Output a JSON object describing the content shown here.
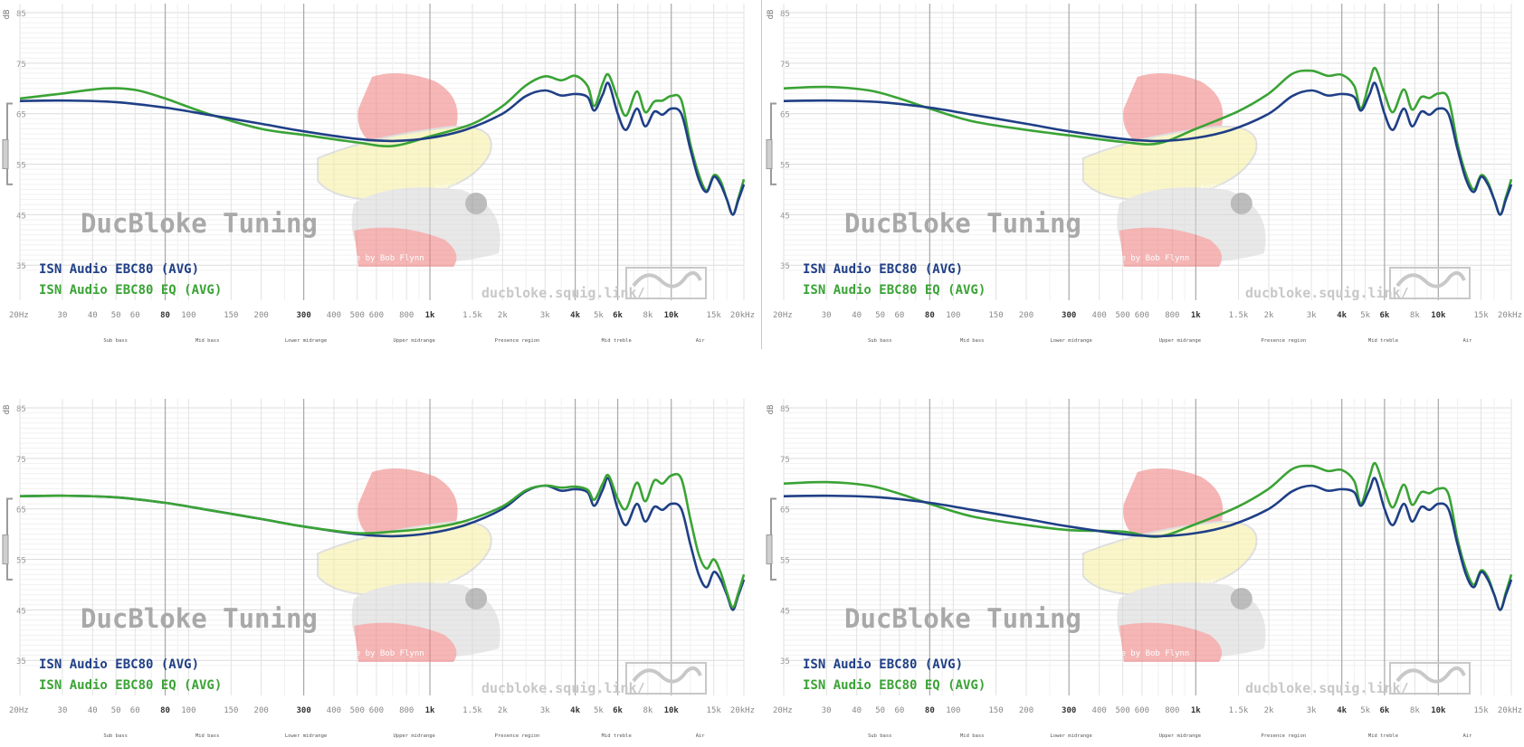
{
  "shared": {
    "db_unit_label": "dB",
    "y_ticks": [
      "85",
      "75",
      "65",
      "55",
      "45",
      "35"
    ],
    "y_values": [
      85,
      75,
      65,
      55,
      45,
      35
    ],
    "x_ticks": [
      {
        "f": 20,
        "label": "20Hz",
        "bold": false
      },
      {
        "f": 30,
        "label": "30",
        "bold": false
      },
      {
        "f": 40,
        "label": "40",
        "bold": false
      },
      {
        "f": 50,
        "label": "50",
        "bold": false
      },
      {
        "f": 60,
        "label": "60",
        "bold": false
      },
      {
        "f": 80,
        "label": "80",
        "bold": true
      },
      {
        "f": 100,
        "label": "100",
        "bold": false
      },
      {
        "f": 150,
        "label": "150",
        "bold": false
      },
      {
        "f": 200,
        "label": "200",
        "bold": false
      },
      {
        "f": 300,
        "label": "300",
        "bold": true
      },
      {
        "f": 400,
        "label": "400",
        "bold": false
      },
      {
        "f": 500,
        "label": "500",
        "bold": false
      },
      {
        "f": 600,
        "label": "600",
        "bold": false
      },
      {
        "f": 800,
        "label": "800",
        "bold": false
      },
      {
        "f": 1000,
        "label": "1k",
        "bold": true
      },
      {
        "f": 1500,
        "label": "1.5k",
        "bold": false
      },
      {
        "f": 2000,
        "label": "2k",
        "bold": false
      },
      {
        "f": 3000,
        "label": "3k",
        "bold": false
      },
      {
        "f": 4000,
        "label": "4k",
        "bold": true
      },
      {
        "f": 5000,
        "label": "5k",
        "bold": false
      },
      {
        "f": 6000,
        "label": "6k",
        "bold": true
      },
      {
        "f": 8000,
        "label": "8k",
        "bold": false
      },
      {
        "f": 10000,
        "label": "10k",
        "bold": true
      },
      {
        "f": 15000,
        "label": "15k",
        "bold": false
      },
      {
        "f": 20000,
        "label": "20kHz",
        "bold": false
      }
    ],
    "regions": [
      {
        "label": "Sub bass",
        "f": 37
      },
      {
        "label": "Mid bass",
        "f": 130
      },
      {
        "label": "Lower midrange",
        "f": 500
      },
      {
        "label": "Upper midrange",
        "f": 2200
      },
      {
        "label": "Presence region",
        "f": 9000
      },
      {
        "label": "Mid treble",
        "f": 35000
      },
      {
        "label": "Air",
        "f": 110000
      }
    ],
    "watermark_title": "DucBloke Tuning",
    "watermark_url": "ducbloke.squig.link/",
    "image_credit": "Image by Bob Flynn",
    "mascot_badge": "DucBloke",
    "colors": {
      "base": "#1f3f86",
      "eq": "#3aa335",
      "grid": "#e6e6e6",
      "grid_major": "#a8a8a8",
      "watermark": "#a9a9a9",
      "mascot_red": "#f07c7c",
      "mascot_yellow": "#f6f0a0"
    }
  },
  "chart_data": [
    {
      "type": "line",
      "title": "",
      "xlabel": "",
      "ylabel": "dB",
      "xscale": "log",
      "xlim": [
        20,
        20000
      ],
      "ylim": [
        32,
        85
      ],
      "grid": true,
      "legend_position": "bottom-left",
      "series": [
        {
          "name": "ISN Audio EBC80 (AVG)",
          "color": "#1f3f86",
          "x": [
            20,
            30,
            50,
            80,
            120,
            200,
            300,
            500,
            700,
            1000,
            1400,
            2000,
            2500,
            3000,
            3500,
            4000,
            4500,
            4800,
            5200,
            5500,
            6000,
            6500,
            7200,
            7800,
            8500,
            9200,
            10000,
            11000,
            12000,
            13000,
            14000,
            15000,
            16000,
            17000,
            18000,
            19000,
            20000
          ],
          "y": [
            67.5,
            67.6,
            67.3,
            66.2,
            64.8,
            63,
            61.5,
            60,
            59.6,
            60.2,
            61.8,
            65,
            68.5,
            69.6,
            68.6,
            68.9,
            68.3,
            65.6,
            68.8,
            71,
            65,
            61.8,
            66,
            62.5,
            65.4,
            64.8,
            66,
            65,
            58,
            52,
            49.5,
            52.5,
            51,
            48,
            45,
            48,
            51
          ]
        },
        {
          "name": "ISN Audio EBC80 EQ (AVG)",
          "color": "#3aa335",
          "x": [
            20,
            30,
            45,
            60,
            80,
            120,
            200,
            300,
            500,
            700,
            1000,
            1500,
            2000,
            2500,
            3000,
            3500,
            4000,
            4500,
            4800,
            5200,
            5500,
            6000,
            6500,
            7200,
            7800,
            8500,
            9200,
            10000,
            11000,
            12000,
            13000,
            14000,
            15000,
            16000,
            17000,
            18000,
            19000,
            20000
          ],
          "y": [
            68,
            69,
            70,
            69.7,
            68,
            65,
            62,
            60.8,
            59.3,
            58.6,
            60.5,
            63,
            66.5,
            70.6,
            72.4,
            71.6,
            72.5,
            70.5,
            66.5,
            71,
            72.7,
            68,
            64.6,
            69.4,
            65.3,
            67.4,
            67.6,
            68.5,
            67.7,
            59,
            53,
            49.8,
            52.8,
            51.7,
            48,
            45,
            48.4,
            52
          ]
        }
      ]
    },
    {
      "type": "line",
      "title": "",
      "xlabel": "",
      "ylabel": "dB",
      "xscale": "log",
      "xlim": [
        20,
        20000
      ],
      "ylim": [
        32,
        85
      ],
      "grid": true,
      "legend_position": "bottom-left",
      "series": [
        {
          "name": "ISN Audio EBC80 (AVG)",
          "color": "#1f3f86",
          "x": [
            20,
            30,
            50,
            80,
            120,
            200,
            300,
            500,
            700,
            1000,
            1400,
            2000,
            2500,
            3000,
            3500,
            4000,
            4500,
            4800,
            5200,
            5500,
            6000,
            6500,
            7200,
            7800,
            8500,
            9200,
            10000,
            11000,
            12000,
            13000,
            14000,
            15000,
            16000,
            17000,
            18000,
            19000,
            20000
          ],
          "y": [
            67.5,
            67.6,
            67.3,
            66.2,
            64.8,
            63,
            61.5,
            60,
            59.6,
            60.2,
            61.8,
            65,
            68.5,
            69.6,
            68.6,
            68.9,
            68.3,
            65.6,
            68.8,
            71,
            65,
            61.8,
            66,
            62.5,
            65.4,
            64.8,
            66,
            65,
            58,
            52,
            49.5,
            52.5,
            51,
            48,
            45,
            48,
            51
          ]
        },
        {
          "name": "ISN Audio EBC80 EQ (AVG)",
          "color": "#3aa335",
          "x": [
            20,
            30,
            45,
            60,
            80,
            120,
            200,
            300,
            500,
            700,
            1000,
            1500,
            2000,
            2500,
            3000,
            3500,
            4000,
            4500,
            4800,
            5200,
            5500,
            6000,
            6500,
            7200,
            7800,
            8500,
            9200,
            10000,
            11000,
            12000,
            13000,
            14000,
            15000,
            16000,
            17000,
            18000,
            19000,
            20000
          ],
          "y": [
            70,
            70.3,
            69.6,
            68,
            66,
            63.5,
            61.8,
            60.7,
            59.4,
            59.1,
            62,
            65.5,
            69,
            72.9,
            73.5,
            72.5,
            72.7,
            70.5,
            66,
            71.3,
            74,
            69,
            65.3,
            69.8,
            65.8,
            68.3,
            68.1,
            69,
            68,
            59,
            53,
            50,
            52.8,
            51.5,
            48,
            45,
            48.5,
            52
          ]
        }
      ]
    },
    {
      "type": "line",
      "title": "",
      "xlabel": "",
      "ylabel": "dB",
      "xscale": "log",
      "xlim": [
        20,
        20000
      ],
      "ylim": [
        32,
        85
      ],
      "grid": true,
      "legend_position": "bottom-left",
      "series": [
        {
          "name": "ISN Audio EBC80 (AVG)",
          "color": "#1f3f86",
          "x": [
            20,
            30,
            50,
            80,
            120,
            200,
            300,
            500,
            700,
            1000,
            1400,
            2000,
            2500,
            3000,
            3500,
            4000,
            4500,
            4800,
            5200,
            5500,
            6000,
            6500,
            7200,
            7800,
            8500,
            9200,
            10000,
            11000,
            12000,
            13000,
            14000,
            15000,
            16000,
            17000,
            18000,
            19000,
            20000
          ],
          "y": [
            67.5,
            67.6,
            67.3,
            66.2,
            64.8,
            63,
            61.5,
            60,
            59.6,
            60.2,
            61.8,
            65,
            68.5,
            69.6,
            68.6,
            68.9,
            68.3,
            65.6,
            68.8,
            71,
            65,
            61.8,
            66,
            62.5,
            65.4,
            64.8,
            66,
            65,
            58,
            52,
            49.5,
            52.5,
            51,
            48,
            45,
            48,
            51
          ]
        },
        {
          "name": "ISN Audio EBC80 EQ (AVG)",
          "color": "#3aa335",
          "x": [
            20,
            30,
            50,
            80,
            120,
            200,
            300,
            500,
            700,
            1000,
            1400,
            2000,
            2500,
            3000,
            3500,
            4000,
            4500,
            4800,
            5200,
            5500,
            6000,
            6500,
            7200,
            7800,
            8500,
            9200,
            10000,
            11000,
            12000,
            13000,
            14000,
            15000,
            16000,
            17000,
            18000,
            19000,
            20000
          ],
          "y": [
            67.5,
            67.6,
            67.3,
            66.2,
            64.8,
            63,
            61.5,
            60.2,
            60.5,
            61.2,
            62.6,
            65.5,
            68.7,
            69.6,
            69.2,
            69.4,
            68.8,
            66.8,
            70,
            71.6,
            67,
            65,
            70.2,
            66.5,
            70.6,
            70,
            71.6,
            71,
            63,
            56,
            53.2,
            55,
            52.5,
            48.5,
            45.5,
            48.5,
            52
          ]
        }
      ]
    },
    {
      "type": "line",
      "title": "",
      "xlabel": "",
      "ylabel": "dB",
      "xscale": "log",
      "xlim": [
        20,
        20000
      ],
      "ylim": [
        32,
        85
      ],
      "grid": true,
      "legend_position": "bottom-left",
      "series": [
        {
          "name": "ISN Audio EBC80 (AVG)",
          "color": "#1f3f86",
          "x": [
            20,
            30,
            50,
            80,
            120,
            200,
            300,
            500,
            700,
            1000,
            1400,
            2000,
            2500,
            3000,
            3500,
            4000,
            4500,
            4800,
            5200,
            5500,
            6000,
            6500,
            7200,
            7800,
            8500,
            9200,
            10000,
            11000,
            12000,
            13000,
            14000,
            15000,
            16000,
            17000,
            18000,
            19000,
            20000
          ],
          "y": [
            67.5,
            67.6,
            67.3,
            66.2,
            64.8,
            63,
            61.5,
            60,
            59.6,
            60.2,
            61.8,
            65,
            68.5,
            69.6,
            68.6,
            68.9,
            68.3,
            65.6,
            68.8,
            71,
            65,
            61.8,
            66,
            62.5,
            65.4,
            64.8,
            66,
            65,
            58,
            52,
            49.5,
            52.5,
            51,
            48,
            45,
            48,
            51
          ]
        },
        {
          "name": "ISN Audio EBC80 EQ (AVG)",
          "color": "#3aa335",
          "x": [
            20,
            30,
            45,
            60,
            80,
            120,
            200,
            300,
            500,
            700,
            1000,
            1500,
            2000,
            2500,
            3000,
            3500,
            4000,
            4500,
            4800,
            5200,
            5500,
            6000,
            6500,
            7200,
            7800,
            8500,
            9200,
            10000,
            11000,
            12000,
            13000,
            14000,
            15000,
            16000,
            17000,
            18000,
            19000,
            20000
          ],
          "y": [
            70,
            70.3,
            69.6,
            68,
            66,
            63.5,
            61.8,
            60.8,
            60.5,
            59.5,
            62,
            65.5,
            69,
            72.9,
            73.5,
            72.5,
            72.7,
            70.5,
            66,
            71.3,
            74,
            69,
            65.3,
            69.8,
            65.8,
            68.3,
            68.1,
            69,
            68,
            59,
            53,
            50,
            52.8,
            51.5,
            48,
            45,
            48.5,
            52
          ]
        }
      ]
    }
  ]
}
